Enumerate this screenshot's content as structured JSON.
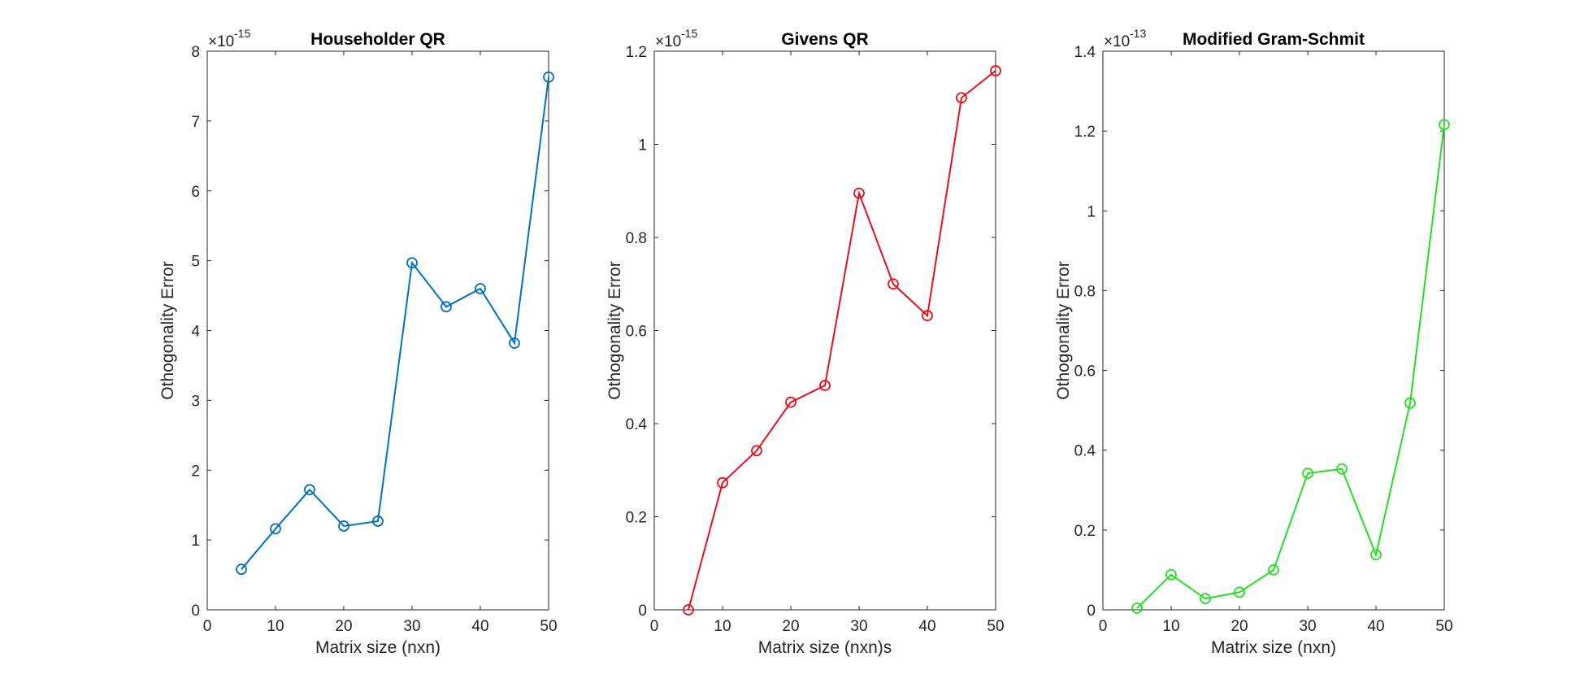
{
  "chart_data": [
    {
      "type": "line",
      "title": "Householder QR",
      "xlabel": "Matrix size (nxn)",
      "ylabel": "Othogonality Error",
      "exponent_base": "×10",
      "exponent": "-15",
      "color": "#0072BD",
      "xlim": [
        0,
        50
      ],
      "ylim": [
        0,
        8
      ],
      "xticks": [
        0,
        10,
        20,
        30,
        40,
        50
      ],
      "yticks": [
        0,
        1,
        2,
        3,
        4,
        5,
        6,
        7,
        8
      ],
      "ytick_labels": [
        "0",
        "1",
        "2",
        "3",
        "4",
        "5",
        "6",
        "7",
        "8"
      ],
      "grid": true,
      "marker": "circle",
      "x": [
        5,
        10,
        15,
        20,
        25,
        30,
        35,
        40,
        45,
        50
      ],
      "y": [
        0.58,
        1.16,
        1.72,
        1.2,
        1.27,
        4.97,
        4.34,
        4.6,
        3.82,
        7.63
      ]
    },
    {
      "type": "line",
      "title": "Givens QR",
      "xlabel": "Matrix size (nxn)s",
      "ylabel": "Othogonality Error",
      "exponent_base": "×10",
      "exponent": "-15",
      "color": "#E8101A",
      "xlim": [
        0,
        50
      ],
      "ylim": [
        0,
        1.2
      ],
      "xticks": [
        0,
        10,
        20,
        30,
        40,
        50
      ],
      "yticks": [
        0,
        0.2,
        0.4,
        0.6,
        0.8,
        1.0,
        1.2
      ],
      "ytick_labels": [
        "0",
        "0.2",
        "0.4",
        "0.6",
        "0.8",
        "1",
        "1.2"
      ],
      "grid": true,
      "marker": "circle",
      "x": [
        5,
        10,
        15,
        20,
        25,
        30,
        35,
        40,
        45,
        50
      ],
      "y": [
        0.0,
        0.273,
        0.342,
        0.446,
        0.482,
        0.895,
        0.7,
        0.632,
        1.1,
        1.158
      ]
    },
    {
      "type": "line",
      "title": "Modified Gram-Schmit",
      "xlabel": "Matrix size (nxn)",
      "ylabel": "Othogonality Error",
      "exponent_base": "×10",
      "exponent": "-13",
      "color": "#22E022",
      "xlim": [
        0,
        50
      ],
      "ylim": [
        0,
        1.4
      ],
      "xticks": [
        0,
        10,
        20,
        30,
        40,
        50
      ],
      "yticks": [
        0,
        0.2,
        0.4,
        0.6,
        0.8,
        1.0,
        1.2,
        1.4
      ],
      "ytick_labels": [
        "0",
        "0.2",
        "0.4",
        "0.6",
        "0.8",
        "1",
        "1.2",
        "1.4"
      ],
      "grid": true,
      "marker": "circle",
      "x": [
        5,
        10,
        15,
        20,
        25,
        30,
        35,
        40,
        45,
        50
      ],
      "y": [
        0.004,
        0.088,
        0.028,
        0.044,
        0.1,
        0.342,
        0.353,
        0.138,
        0.518,
        1.216
      ]
    }
  ]
}
